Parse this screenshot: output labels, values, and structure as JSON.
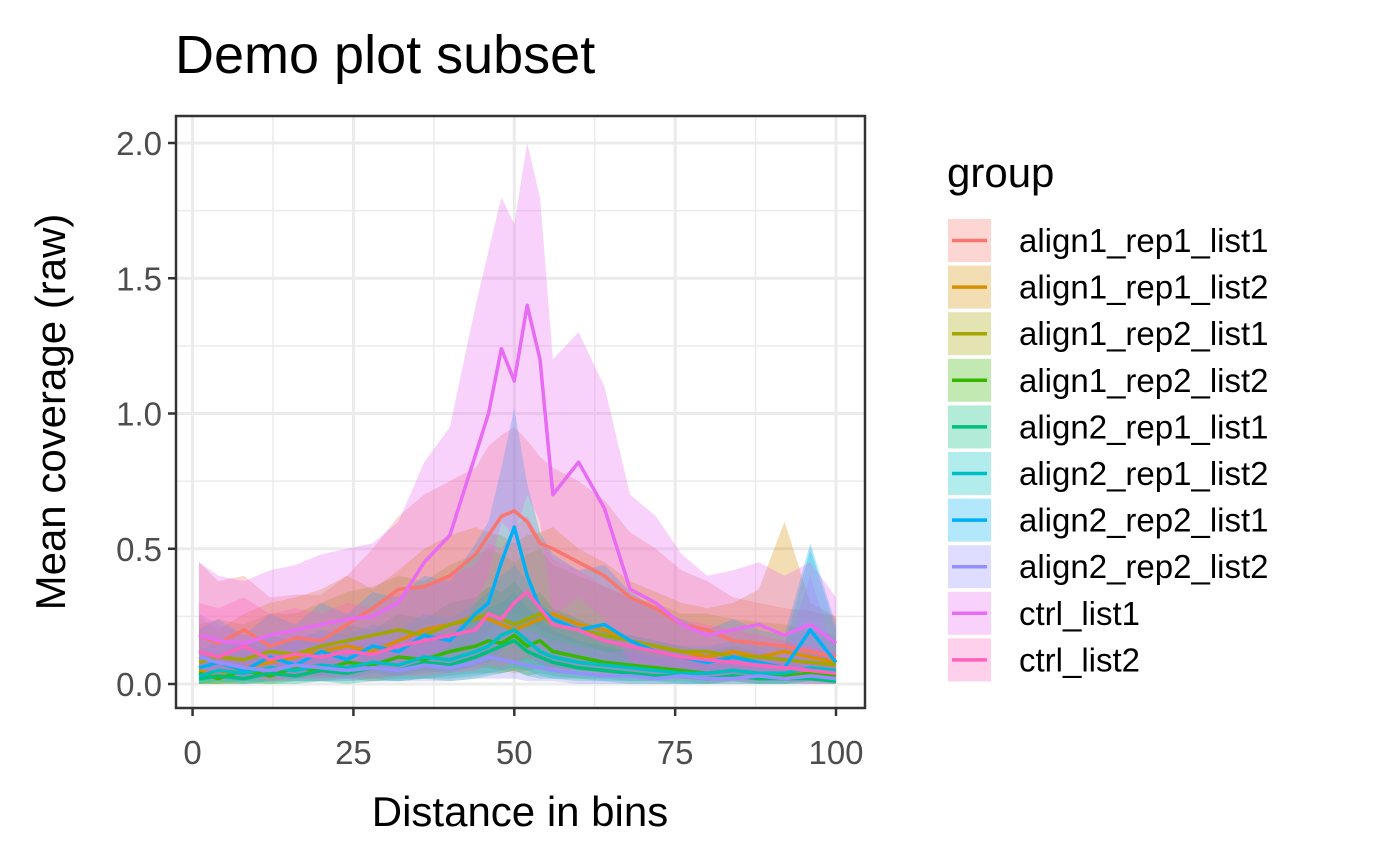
{
  "chart_data": {
    "type": "line",
    "title": "Demo plot subset",
    "xlabel": "Distance in bins",
    "ylabel": "Mean coverage (raw)",
    "xlim": [
      1,
      100
    ],
    "ylim": [
      0,
      2.0
    ],
    "xticks": [
      "0",
      "25",
      "50",
      "75",
      "100"
    ],
    "yticks": [
      "0.0",
      "0.5",
      "1.0",
      "1.5",
      "2.0"
    ],
    "grid": true,
    "ribbons": true,
    "legend": {
      "title": "group",
      "placement": "right"
    },
    "x": [
      1,
      4,
      8,
      12,
      16,
      20,
      24,
      28,
      32,
      36,
      40,
      44,
      46,
      48,
      50,
      52,
      54,
      56,
      60,
      64,
      68,
      72,
      76,
      80,
      84,
      88,
      92,
      96,
      100
    ],
    "series": [
      {
        "name": "align1_rep1_list1",
        "color": "#F8766D",
        "values": [
          0.18,
          0.15,
          0.2,
          0.14,
          0.17,
          0.16,
          0.22,
          0.28,
          0.35,
          0.36,
          0.4,
          0.48,
          0.55,
          0.62,
          0.64,
          0.6,
          0.52,
          0.5,
          0.45,
          0.4,
          0.32,
          0.28,
          0.22,
          0.2,
          0.16,
          0.15,
          0.14,
          0.12,
          0.1
        ],
        "upper": [
          0.45,
          0.38,
          0.4,
          0.32,
          0.33,
          0.33,
          0.4,
          0.5,
          0.62,
          0.7,
          0.75,
          0.8,
          0.88,
          0.92,
          0.95,
          0.9,
          0.84,
          0.8,
          0.75,
          0.68,
          0.56,
          0.5,
          0.42,
          0.38,
          0.32,
          0.3,
          0.28,
          0.27,
          0.25
        ],
        "lower": [
          0.02,
          0.02,
          0.04,
          0.02,
          0.03,
          0.03,
          0.05,
          0.08,
          0.1,
          0.1,
          0.12,
          0.15,
          0.2,
          0.25,
          0.26,
          0.25,
          0.2,
          0.18,
          0.15,
          0.12,
          0.09,
          0.07,
          0.05,
          0.05,
          0.04,
          0.03,
          0.03,
          0.02,
          0.02
        ]
      },
      {
        "name": "align1_rep1_list2",
        "color": "#D89000",
        "values": [
          0.05,
          0.03,
          0.06,
          0.08,
          0.1,
          0.12,
          0.14,
          0.12,
          0.16,
          0.2,
          0.22,
          0.25,
          0.24,
          0.22,
          0.2,
          0.22,
          0.24,
          0.26,
          0.22,
          0.2,
          0.16,
          0.14,
          0.12,
          0.1,
          0.12,
          0.1,
          0.12,
          0.1,
          0.08
        ],
        "upper": [
          0.25,
          0.2,
          0.26,
          0.3,
          0.32,
          0.35,
          0.4,
          0.35,
          0.42,
          0.5,
          0.55,
          0.58,
          0.56,
          0.55,
          0.52,
          0.55,
          0.56,
          0.58,
          0.5,
          0.45,
          0.38,
          0.34,
          0.3,
          0.28,
          0.3,
          0.35,
          0.6,
          0.3,
          0.25
        ],
        "lower": [
          0.0,
          0.0,
          0.0,
          0.01,
          0.02,
          0.02,
          0.03,
          0.02,
          0.03,
          0.04,
          0.05,
          0.06,
          0.06,
          0.05,
          0.04,
          0.05,
          0.06,
          0.06,
          0.05,
          0.04,
          0.03,
          0.02,
          0.02,
          0.01,
          0.02,
          0.01,
          0.02,
          0.01,
          0.01
        ]
      },
      {
        "name": "align1_rep2_list1",
        "color": "#A3A500",
        "values": [
          0.08,
          0.1,
          0.09,
          0.12,
          0.11,
          0.14,
          0.16,
          0.18,
          0.2,
          0.18,
          0.22,
          0.24,
          0.26,
          0.24,
          0.22,
          0.24,
          0.26,
          0.22,
          0.2,
          0.18,
          0.16,
          0.14,
          0.12,
          0.12,
          0.1,
          0.1,
          0.09,
          0.08,
          0.07
        ],
        "upper": [
          0.22,
          0.24,
          0.22,
          0.26,
          0.26,
          0.3,
          0.34,
          0.36,
          0.4,
          0.38,
          0.44,
          0.48,
          0.5,
          0.48,
          0.45,
          0.48,
          0.5,
          0.44,
          0.4,
          0.36,
          0.32,
          0.3,
          0.26,
          0.26,
          0.24,
          0.23,
          0.22,
          0.2,
          0.18
        ],
        "lower": [
          0.02,
          0.03,
          0.02,
          0.04,
          0.03,
          0.05,
          0.06,
          0.06,
          0.07,
          0.06,
          0.08,
          0.09,
          0.1,
          0.09,
          0.08,
          0.09,
          0.1,
          0.08,
          0.07,
          0.06,
          0.05,
          0.05,
          0.04,
          0.04,
          0.03,
          0.03,
          0.03,
          0.02,
          0.02
        ]
      },
      {
        "name": "align1_rep2_list2",
        "color": "#39B600",
        "values": [
          0.04,
          0.02,
          0.05,
          0.03,
          0.06,
          0.05,
          0.08,
          0.07,
          0.1,
          0.09,
          0.12,
          0.14,
          0.16,
          0.15,
          0.18,
          0.14,
          0.16,
          0.12,
          0.1,
          0.08,
          0.07,
          0.06,
          0.05,
          0.04,
          0.05,
          0.04,
          0.03,
          0.04,
          0.03
        ],
        "upper": [
          0.14,
          0.1,
          0.16,
          0.12,
          0.18,
          0.16,
          0.22,
          0.2,
          0.26,
          0.24,
          0.3,
          0.32,
          0.36,
          0.34,
          0.38,
          0.32,
          0.34,
          0.28,
          0.24,
          0.2,
          0.18,
          0.16,
          0.14,
          0.12,
          0.14,
          0.12,
          0.1,
          0.12,
          0.1
        ],
        "lower": [
          0.0,
          0.0,
          0.01,
          0.0,
          0.01,
          0.01,
          0.02,
          0.01,
          0.02,
          0.02,
          0.03,
          0.04,
          0.04,
          0.04,
          0.05,
          0.03,
          0.04,
          0.03,
          0.02,
          0.02,
          0.01,
          0.01,
          0.01,
          0.0,
          0.01,
          0.0,
          0.0,
          0.01,
          0.0
        ]
      },
      {
        "name": "align2_rep1_list1",
        "color": "#00BF7D",
        "values": [
          0.02,
          0.03,
          0.02,
          0.04,
          0.03,
          0.05,
          0.04,
          0.06,
          0.05,
          0.08,
          0.07,
          0.1,
          0.12,
          0.14,
          0.16,
          0.12,
          0.1,
          0.08,
          0.06,
          0.05,
          0.04,
          0.03,
          0.03,
          0.02,
          0.03,
          0.02,
          0.02,
          0.02,
          0.01
        ],
        "upper": [
          0.08,
          0.1,
          0.08,
          0.12,
          0.1,
          0.14,
          0.12,
          0.16,
          0.14,
          0.2,
          0.18,
          0.24,
          0.28,
          0.3,
          0.34,
          0.28,
          0.24,
          0.2,
          0.16,
          0.14,
          0.12,
          0.1,
          0.1,
          0.08,
          0.1,
          0.08,
          0.08,
          0.08,
          0.06
        ],
        "lower": [
          0.0,
          0.0,
          0.0,
          0.0,
          0.0,
          0.01,
          0.0,
          0.01,
          0.01,
          0.02,
          0.01,
          0.02,
          0.03,
          0.04,
          0.05,
          0.03,
          0.02,
          0.02,
          0.01,
          0.01,
          0.0,
          0.0,
          0.0,
          0.0,
          0.0,
          0.0,
          0.0,
          0.0,
          0.0
        ]
      },
      {
        "name": "align2_rep1_list2",
        "color": "#00BFC4",
        "values": [
          0.03,
          0.05,
          0.04,
          0.06,
          0.05,
          0.07,
          0.06,
          0.08,
          0.07,
          0.1,
          0.09,
          0.12,
          0.14,
          0.18,
          0.2,
          0.16,
          0.12,
          0.1,
          0.08,
          0.07,
          0.06,
          0.05,
          0.04,
          0.04,
          0.05,
          0.04,
          0.04,
          0.06,
          0.05
        ],
        "upper": [
          0.12,
          0.16,
          0.14,
          0.18,
          0.16,
          0.2,
          0.18,
          0.22,
          0.2,
          0.26,
          0.24,
          0.3,
          0.34,
          0.4,
          0.44,
          0.38,
          0.3,
          0.26,
          0.22,
          0.2,
          0.18,
          0.16,
          0.14,
          0.14,
          0.16,
          0.14,
          0.14,
          0.5,
          0.2
        ],
        "lower": [
          0.0,
          0.01,
          0.0,
          0.01,
          0.01,
          0.01,
          0.01,
          0.02,
          0.01,
          0.02,
          0.02,
          0.03,
          0.04,
          0.05,
          0.06,
          0.05,
          0.03,
          0.02,
          0.02,
          0.01,
          0.01,
          0.01,
          0.0,
          0.0,
          0.01,
          0.0,
          0.0,
          0.01,
          0.01
        ]
      },
      {
        "name": "align2_rep2_list1",
        "color": "#00B0F6",
        "values": [
          0.06,
          0.08,
          0.05,
          0.1,
          0.07,
          0.12,
          0.09,
          0.14,
          0.12,
          0.18,
          0.16,
          0.26,
          0.3,
          0.45,
          0.58,
          0.4,
          0.28,
          0.24,
          0.2,
          0.22,
          0.16,
          0.12,
          0.1,
          0.08,
          0.1,
          0.08,
          0.06,
          0.2,
          0.08
        ],
        "upper": [
          0.2,
          0.24,
          0.18,
          0.26,
          0.22,
          0.3,
          0.26,
          0.34,
          0.32,
          0.4,
          0.38,
          0.52,
          0.6,
          0.8,
          1.02,
          0.74,
          0.56,
          0.48,
          0.42,
          0.44,
          0.34,
          0.28,
          0.24,
          0.2,
          0.24,
          0.2,
          0.18,
          0.52,
          0.22
        ],
        "lower": [
          0.01,
          0.02,
          0.01,
          0.03,
          0.02,
          0.03,
          0.02,
          0.04,
          0.03,
          0.05,
          0.04,
          0.07,
          0.08,
          0.12,
          0.18,
          0.11,
          0.07,
          0.06,
          0.05,
          0.05,
          0.04,
          0.03,
          0.02,
          0.02,
          0.02,
          0.02,
          0.01,
          0.05,
          0.02
        ]
      },
      {
        "name": "align2_rep2_list2",
        "color": "#9590FF",
        "values": [
          0.1,
          0.08,
          0.06,
          0.05,
          0.07,
          0.06,
          0.05,
          0.06,
          0.05,
          0.07,
          0.06,
          0.08,
          0.1,
          0.09,
          0.08,
          0.07,
          0.06,
          0.05,
          0.04,
          0.03,
          0.03,
          0.02,
          0.03,
          0.02,
          0.02,
          0.03,
          0.02,
          0.03,
          0.02
        ],
        "upper": [
          0.26,
          0.22,
          0.18,
          0.16,
          0.2,
          0.18,
          0.16,
          0.18,
          0.16,
          0.2,
          0.18,
          0.22,
          0.26,
          0.24,
          0.22,
          0.2,
          0.18,
          0.16,
          0.14,
          0.12,
          0.12,
          0.1,
          0.12,
          0.1,
          0.1,
          0.12,
          0.1,
          0.4,
          0.1
        ],
        "lower": [
          0.02,
          0.01,
          0.01,
          0.01,
          0.01,
          0.01,
          0.01,
          0.01,
          0.01,
          0.01,
          0.01,
          0.02,
          0.02,
          0.02,
          0.02,
          0.01,
          0.01,
          0.01,
          0.0,
          0.0,
          0.0,
          0.0,
          0.0,
          0.0,
          0.0,
          0.0,
          0.0,
          0.0,
          0.0
        ]
      },
      {
        "name": "ctrl_list1",
        "color": "#E76BF3",
        "values": [
          0.18,
          0.16,
          0.15,
          0.18,
          0.2,
          0.22,
          0.24,
          0.25,
          0.3,
          0.45,
          0.55,
          0.85,
          1.0,
          1.24,
          1.12,
          1.4,
          1.2,
          0.7,
          0.82,
          0.65,
          0.35,
          0.3,
          0.22,
          0.18,
          0.2,
          0.22,
          0.18,
          0.22,
          0.15
        ],
        "upper": [
          0.45,
          0.4,
          0.38,
          0.42,
          0.44,
          0.48,
          0.5,
          0.52,
          0.6,
          0.82,
          0.95,
          1.4,
          1.6,
          1.8,
          1.7,
          2.0,
          1.8,
          1.2,
          1.3,
          1.1,
          0.7,
          0.62,
          0.48,
          0.4,
          0.42,
          0.45,
          0.4,
          0.45,
          0.32
        ],
        "lower": [
          0.03,
          0.02,
          0.02,
          0.03,
          0.04,
          0.04,
          0.05,
          0.05,
          0.06,
          0.1,
          0.14,
          0.3,
          0.4,
          0.6,
          0.55,
          0.7,
          0.6,
          0.25,
          0.32,
          0.24,
          0.08,
          0.06,
          0.04,
          0.03,
          0.04,
          0.05,
          0.03,
          0.05,
          0.02
        ]
      },
      {
        "name": "ctrl_list2",
        "color": "#FF62BC",
        "values": [
          0.12,
          0.1,
          0.14,
          0.09,
          0.11,
          0.1,
          0.12,
          0.11,
          0.14,
          0.16,
          0.18,
          0.2,
          0.26,
          0.24,
          0.3,
          0.34,
          0.28,
          0.22,
          0.2,
          0.16,
          0.14,
          0.12,
          0.1,
          0.09,
          0.08,
          0.07,
          0.06,
          0.05,
          0.04
        ],
        "upper": [
          0.3,
          0.28,
          0.32,
          0.26,
          0.28,
          0.26,
          0.3,
          0.28,
          0.34,
          0.36,
          0.4,
          0.44,
          0.52,
          0.5,
          0.58,
          0.62,
          0.54,
          0.46,
          0.42,
          0.36,
          0.32,
          0.28,
          0.24,
          0.22,
          0.2,
          0.18,
          0.16,
          0.14,
          0.12
        ],
        "lower": [
          0.02,
          0.02,
          0.03,
          0.01,
          0.02,
          0.02,
          0.02,
          0.02,
          0.03,
          0.03,
          0.04,
          0.05,
          0.07,
          0.06,
          0.08,
          0.1,
          0.08,
          0.05,
          0.05,
          0.03,
          0.03,
          0.02,
          0.02,
          0.01,
          0.01,
          0.01,
          0.01,
          0.0,
          0.0
        ]
      }
    ]
  }
}
